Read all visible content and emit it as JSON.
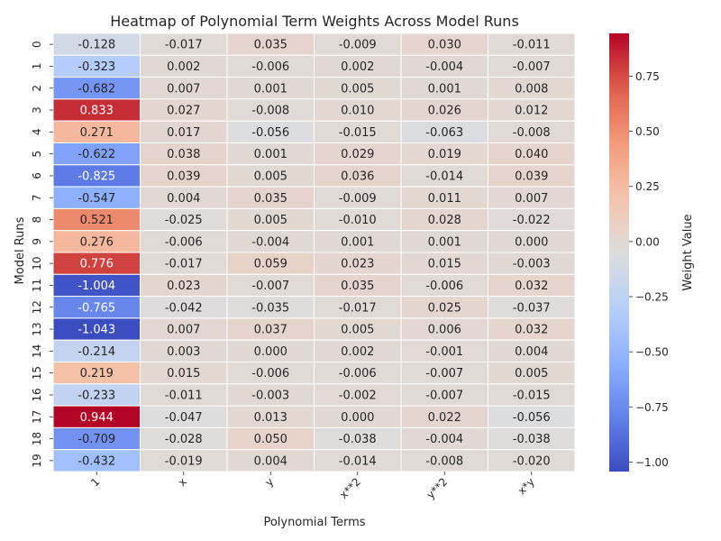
{
  "chart_data": {
    "type": "heatmap",
    "title": "Heatmap of Polynomial Term Weights Across Model Runs",
    "xlabel": "Polynomial Terms",
    "ylabel": "Model Runs",
    "colorbar_label": "Weight Value",
    "colormap": "coolwarm",
    "vmin": -1.043,
    "vmax": 0.944,
    "colorbar_ticks": [
      "0.75",
      "0.50",
      "0.25",
      "0.00",
      "−0.25",
      "−0.50",
      "−0.75",
      "−1.00"
    ],
    "columns": [
      "1",
      "x",
      "y",
      "x**2",
      "y**2",
      "x*y"
    ],
    "rows": [
      "0",
      "1",
      "2",
      "3",
      "4",
      "5",
      "6",
      "7",
      "8",
      "9",
      "10",
      "11",
      "12",
      "13",
      "14",
      "15",
      "16",
      "17",
      "18",
      "19"
    ],
    "values": [
      [
        -0.128,
        -0.017,
        0.035,
        -0.009,
        0.03,
        -0.011
      ],
      [
        -0.323,
        0.002,
        -0.006,
        0.002,
        -0.004,
        -0.007
      ],
      [
        -0.682,
        0.007,
        0.001,
        0.005,
        0.001,
        0.008
      ],
      [
        0.833,
        0.027,
        -0.008,
        0.01,
        0.026,
        0.012
      ],
      [
        0.271,
        0.017,
        -0.056,
        -0.015,
        -0.063,
        -0.008
      ],
      [
        -0.622,
        0.038,
        0.001,
        0.029,
        0.019,
        0.04
      ],
      [
        -0.825,
        0.039,
        0.005,
        0.036,
        -0.014,
        0.039
      ],
      [
        -0.547,
        0.004,
        0.035,
        -0.009,
        0.011,
        0.007
      ],
      [
        0.521,
        -0.025,
        0.005,
        -0.01,
        0.028,
        -0.022
      ],
      [
        0.276,
        -0.006,
        -0.004,
        0.001,
        0.001,
        0.0
      ],
      [
        0.776,
        -0.017,
        0.059,
        0.023,
        0.015,
        -0.003
      ],
      [
        -1.004,
        0.023,
        -0.007,
        0.035,
        -0.006,
        0.032
      ],
      [
        -0.765,
        -0.042,
        -0.035,
        -0.017,
        0.025,
        -0.037
      ],
      [
        -1.043,
        0.007,
        0.037,
        0.005,
        0.006,
        0.032
      ],
      [
        -0.214,
        0.003,
        0.0,
        0.002,
        -0.001,
        0.004
      ],
      [
        0.219,
        0.015,
        -0.006,
        -0.006,
        -0.007,
        0.005
      ],
      [
        -0.233,
        -0.011,
        -0.003,
        -0.002,
        -0.007,
        -0.015
      ],
      [
        0.944,
        -0.047,
        0.013,
        0.0,
        0.022,
        -0.056
      ],
      [
        -0.709,
        -0.028,
        0.05,
        -0.038,
        -0.004,
        -0.038
      ],
      [
        -0.432,
        -0.019,
        0.004,
        -0.014,
        -0.008,
        -0.02
      ]
    ]
  }
}
